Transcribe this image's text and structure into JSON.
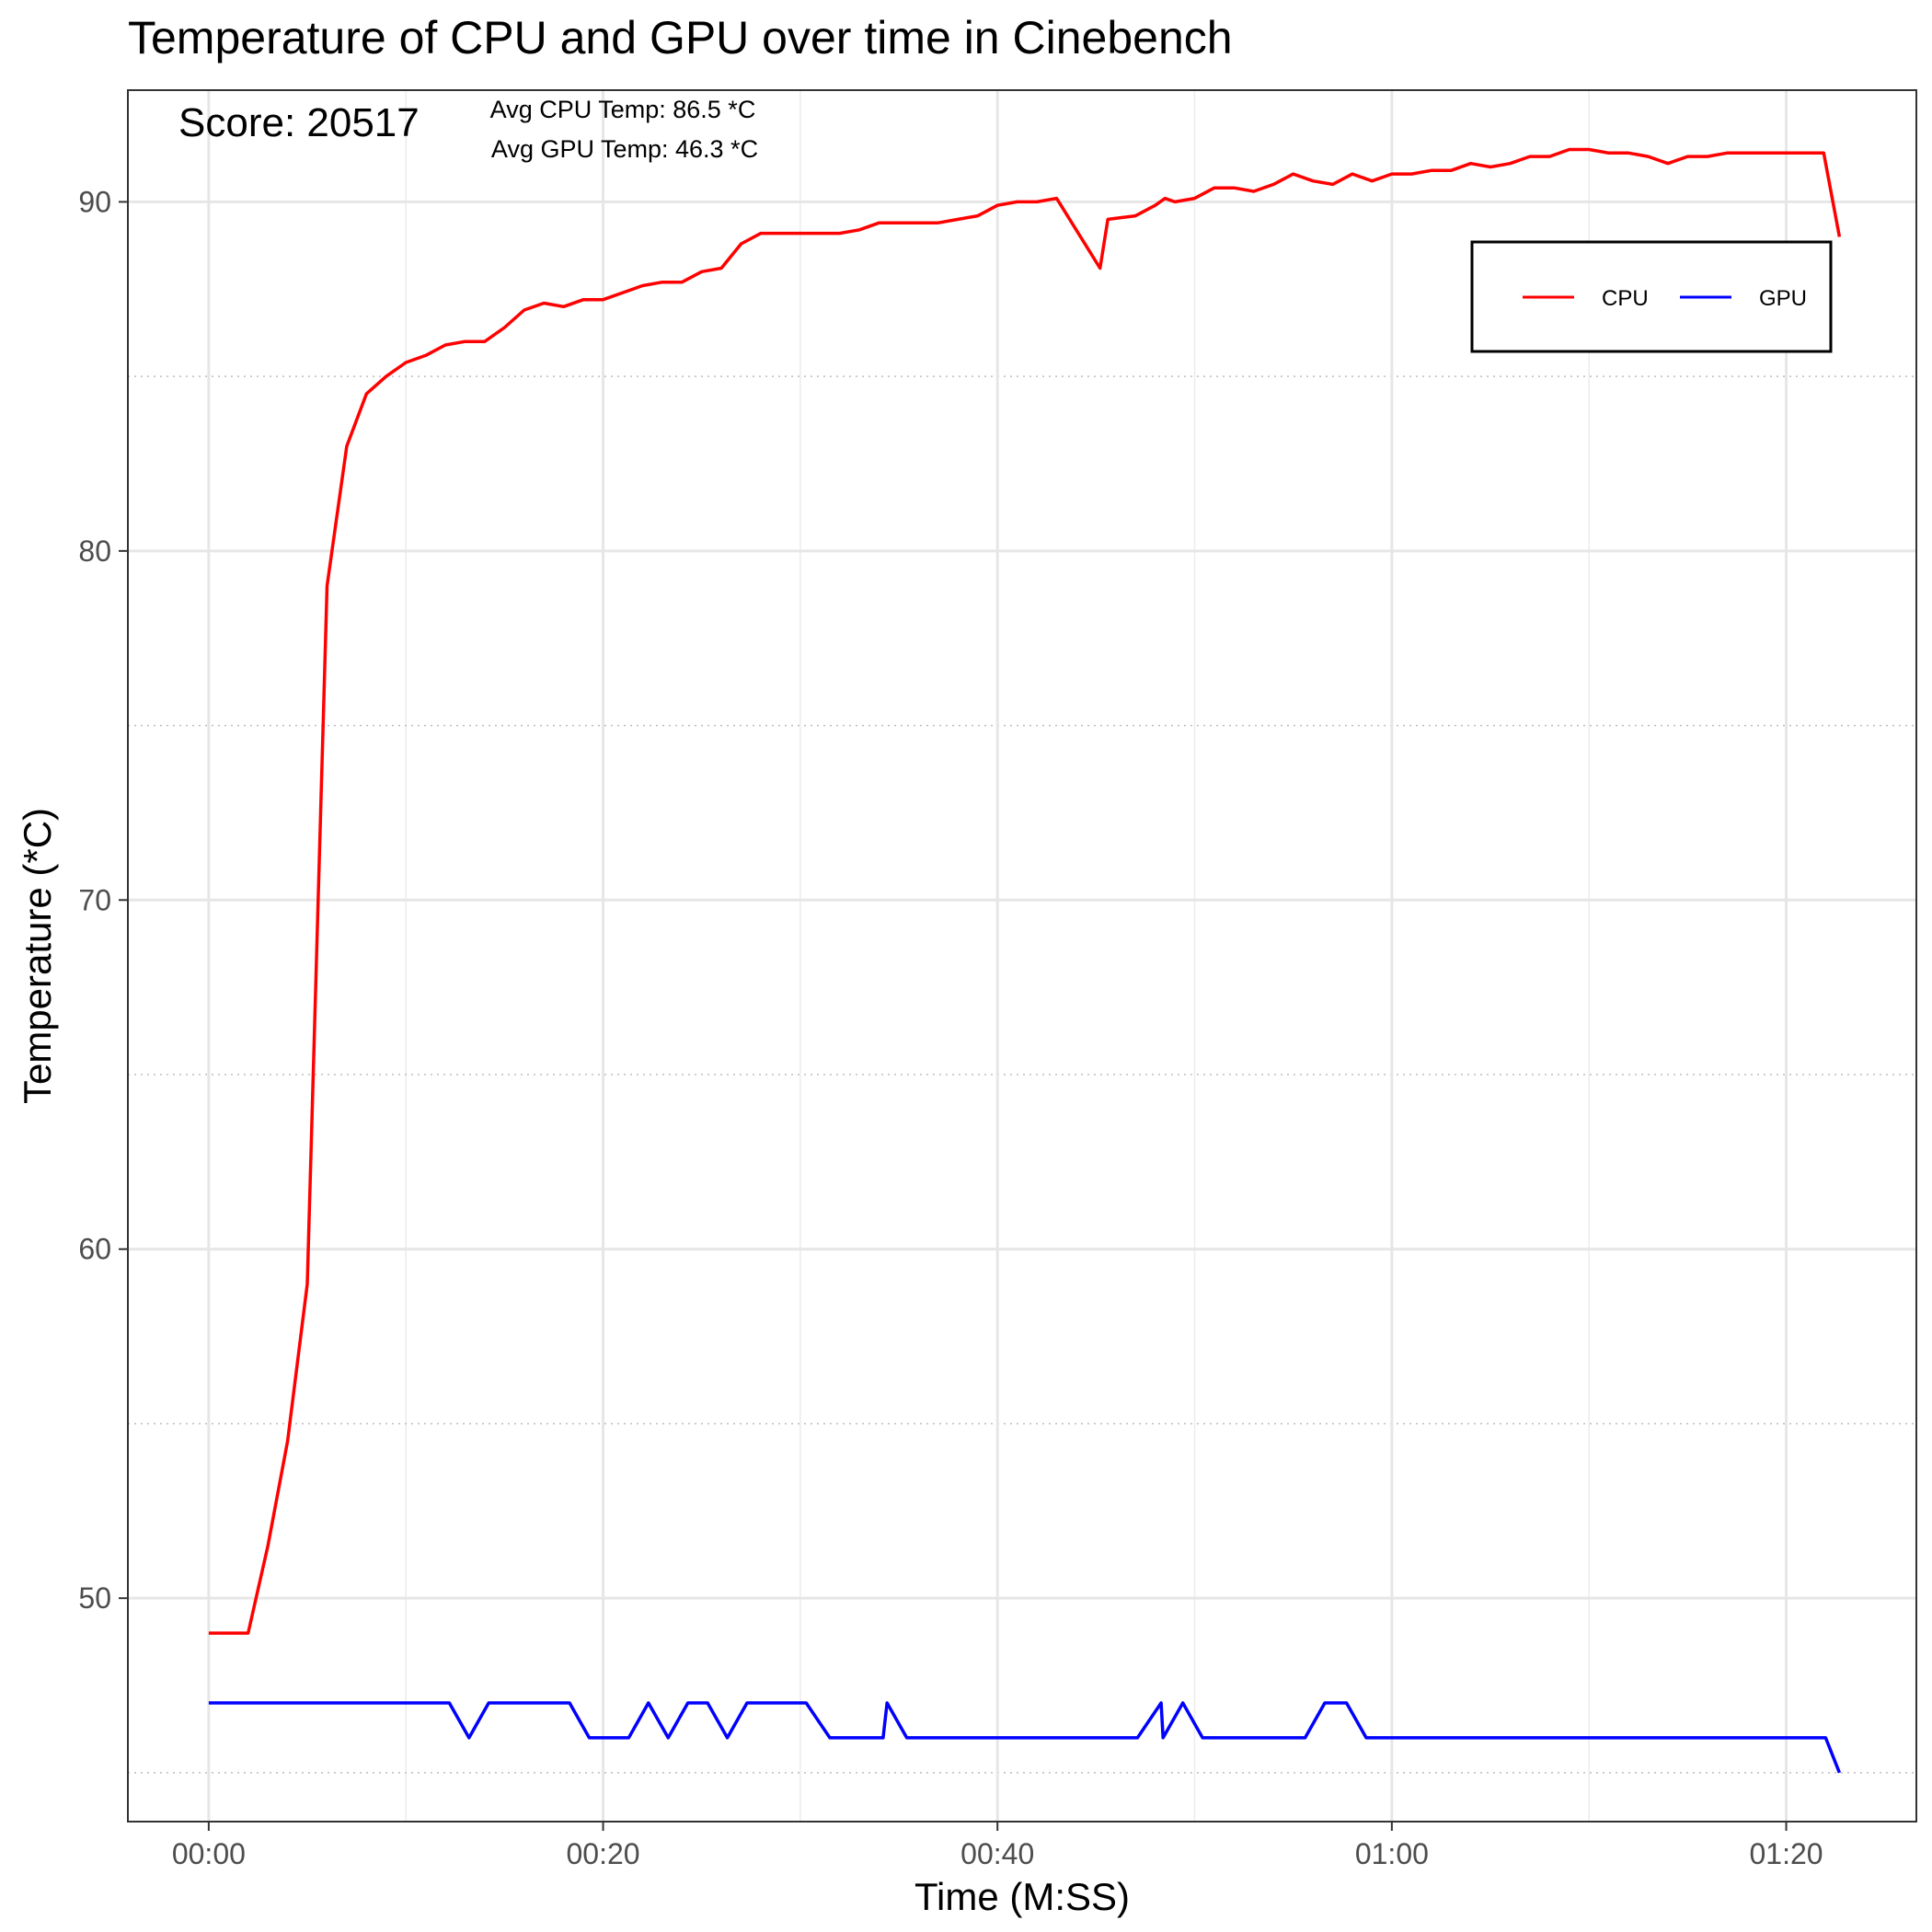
{
  "chart_data": {
    "type": "line",
    "title": "Temperature of CPU and GPU over time in Cinebench",
    "xlabel": "Time (M:SS)",
    "ylabel": "Temperature (*C)",
    "annotations": {
      "score": "Score: 20517",
      "avg_cpu": "Avg CPU Temp: 86.5 *C",
      "avg_gpu": "Avg GPU Temp: 46.3 *C"
    },
    "xlim_seconds": [
      -4.1,
      86.6
    ],
    "ylim": [
      43.6,
      93.2
    ],
    "x_ticks": [
      {
        "value": 0,
        "label": "00:00"
      },
      {
        "value": 20,
        "label": "00:20"
      },
      {
        "value": 40,
        "label": "00:40"
      },
      {
        "value": 60,
        "label": "01:00"
      },
      {
        "value": 80,
        "label": "01:20"
      }
    ],
    "y_ticks": [
      50,
      60,
      70,
      80,
      90
    ],
    "y_minor_gridlines": [
      45,
      55,
      65,
      75,
      85
    ],
    "grid": true,
    "legend": {
      "position": "top-right",
      "boxed": true
    },
    "series": [
      {
        "name": "CPU",
        "color": "#ff0000",
        "points": [
          [
            0,
            49
          ],
          [
            2,
            49
          ],
          [
            3,
            51.5
          ],
          [
            4,
            54.5
          ],
          [
            5,
            59
          ],
          [
            6,
            79
          ],
          [
            7,
            83
          ],
          [
            8,
            84.5
          ],
          [
            9,
            85
          ],
          [
            10,
            85.4
          ],
          [
            11,
            85.6
          ],
          [
            12,
            85.9
          ],
          [
            13,
            86
          ],
          [
            14,
            86
          ],
          [
            15,
            86.4
          ],
          [
            16,
            86.9
          ],
          [
            17,
            87.1
          ],
          [
            18,
            87
          ],
          [
            19,
            87.2
          ],
          [
            20,
            87.2
          ],
          [
            21,
            87.4
          ],
          [
            22,
            87.6
          ],
          [
            23,
            87.7
          ],
          [
            24,
            87.7
          ],
          [
            25,
            88
          ],
          [
            26,
            88.1
          ],
          [
            27,
            88.8
          ],
          [
            28,
            89.1
          ],
          [
            29,
            89.1
          ],
          [
            30,
            89.1
          ],
          [
            31,
            89.1
          ],
          [
            32,
            89.1
          ],
          [
            33,
            89.2
          ],
          [
            34,
            89.4
          ],
          [
            35,
            89.4
          ],
          [
            36,
            89.4
          ],
          [
            37,
            89.4
          ],
          [
            38,
            89.5
          ],
          [
            39,
            89.6
          ],
          [
            40,
            89.9
          ],
          [
            41,
            90
          ],
          [
            42,
            90
          ],
          [
            43,
            90.1
          ],
          [
            45.2,
            88.1
          ],
          [
            45.6,
            89.5
          ],
          [
            47,
            89.6
          ],
          [
            48,
            89.9
          ],
          [
            48.5,
            90.1
          ],
          [
            49,
            90
          ],
          [
            50,
            90.1
          ],
          [
            51,
            90.4
          ],
          [
            52,
            90.4
          ],
          [
            53,
            90.3
          ],
          [
            54,
            90.5
          ],
          [
            55,
            90.8
          ],
          [
            56,
            90.6
          ],
          [
            57,
            90.5
          ],
          [
            58,
            90.8
          ],
          [
            59,
            90.6
          ],
          [
            60,
            90.8
          ],
          [
            61,
            90.8
          ],
          [
            62,
            90.9
          ],
          [
            63,
            90.9
          ],
          [
            64,
            91.1
          ],
          [
            65,
            91
          ],
          [
            66,
            91.1
          ],
          [
            67,
            91.3
          ],
          [
            68,
            91.3
          ],
          [
            69,
            91.5
          ],
          [
            70,
            91.5
          ],
          [
            71,
            91.4
          ],
          [
            72,
            91.4
          ],
          [
            73,
            91.3
          ],
          [
            74,
            91.1
          ],
          [
            75,
            91.3
          ],
          [
            76,
            91.3
          ],
          [
            77,
            91.4
          ],
          [
            78,
            91.4
          ],
          [
            79,
            91.4
          ],
          [
            80,
            91.4
          ],
          [
            81,
            91.4
          ],
          [
            81.9,
            91.4
          ],
          [
            82.7,
            89
          ]
        ]
      },
      {
        "name": "GPU",
        "color": "#0000ff",
        "points": [
          [
            0,
            47
          ],
          [
            12.2,
            47
          ],
          [
            13.2,
            46
          ],
          [
            14.2,
            47
          ],
          [
            18.3,
            47
          ],
          [
            19.3,
            46
          ],
          [
            21.3,
            46
          ],
          [
            22.3,
            47
          ],
          [
            23.3,
            46
          ],
          [
            24.3,
            47
          ],
          [
            25.3,
            47
          ],
          [
            26.3,
            46
          ],
          [
            27.3,
            47
          ],
          [
            30.3,
            47
          ],
          [
            31.5,
            46
          ],
          [
            34.2,
            46
          ],
          [
            34.4,
            47
          ],
          [
            35.4,
            46
          ],
          [
            47.1,
            46
          ],
          [
            48.3,
            47
          ],
          [
            48.4,
            46
          ],
          [
            49.4,
            47
          ],
          [
            50.4,
            46
          ],
          [
            55.6,
            46
          ],
          [
            56.6,
            47
          ],
          [
            57.7,
            47
          ],
          [
            58.7,
            46
          ],
          [
            82,
            46
          ],
          [
            82.7,
            45
          ]
        ]
      }
    ]
  }
}
